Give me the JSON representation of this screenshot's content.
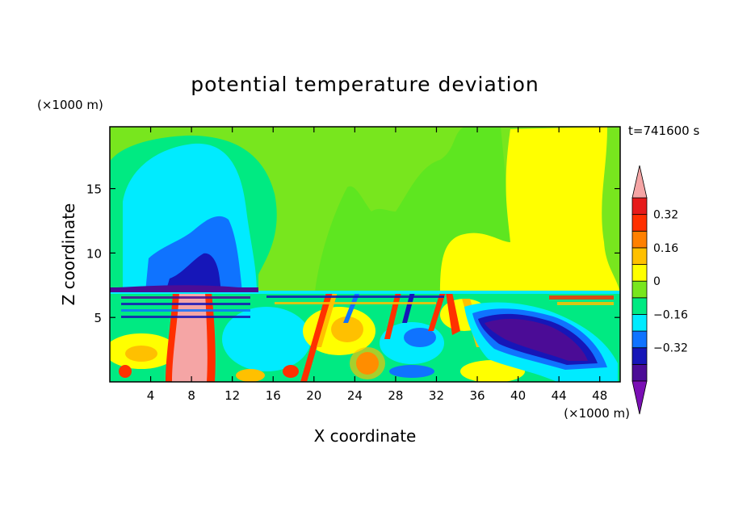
{
  "chart_data": {
    "type": "heatmap",
    "title": "potential temperature deviation",
    "time_label": "t=741600 s",
    "xlabel": "X coordinate",
    "ylabel": "Z coordinate",
    "x_units": "(×1000 m)",
    "y_units": "(×1000 m)",
    "xlim": [
      0,
      50
    ],
    "ylim": [
      0,
      19.8
    ],
    "x_ticks": [
      4,
      8,
      12,
      16,
      20,
      24,
      28,
      32,
      36,
      40,
      44,
      48
    ],
    "y_ticks": [
      5,
      10,
      15
    ],
    "grid": false,
    "colorbar": {
      "levels": [
        -0.48,
        -0.4,
        -0.32,
        -0.24,
        -0.16,
        -0.08,
        0,
        0.08,
        0.16,
        0.24,
        0.32,
        0.4
      ],
      "labels": [
        "0.32",
        "0.16",
        "0",
        "−0.16",
        "−0.32"
      ],
      "label_values": [
        0.32,
        0.16,
        0,
        -0.16,
        -0.32
      ],
      "colors": [
        "#7a0fb4",
        "#4b0c96",
        "#1616b8",
        "#0f73ff",
        "#00ebff",
        "#00ea82",
        "#78e61e",
        "#ffff00",
        "#ffc000",
        "#ff8000",
        "#ff3000",
        "#e61b1b",
        "#f5a5a5"
      ],
      "extend": "both"
    },
    "field_description": "Upper layer (Z > 7) smooth large-scale structure; lower layer (Z < 7) with small-scale wave structure",
    "field_samples": {
      "z": [
        1.5,
        4,
        6.5,
        10,
        17
      ],
      "x": [
        2,
        9,
        16,
        24,
        30,
        38,
        44,
        48
      ],
      "values": [
        [
          -0.04,
          0.45,
          -0.2,
          0.1,
          -0.1,
          0.15,
          -0.35,
          0.05
        ],
        [
          0.1,
          0.45,
          -0.12,
          0.15,
          -0.2,
          -0.4,
          -0.38,
          -0.1
        ],
        [
          -0.25,
          0.4,
          -0.1,
          0.25,
          -0.3,
          -0.1,
          0.05,
          0.2
        ],
        [
          0.04,
          -0.32,
          0.04,
          0.06,
          0.05,
          0.15,
          0.15,
          0.05
        ],
        [
          0.04,
          -0.13,
          0.03,
          0.05,
          0.05,
          0.15,
          0.15,
          0.04
        ]
      ]
    }
  }
}
